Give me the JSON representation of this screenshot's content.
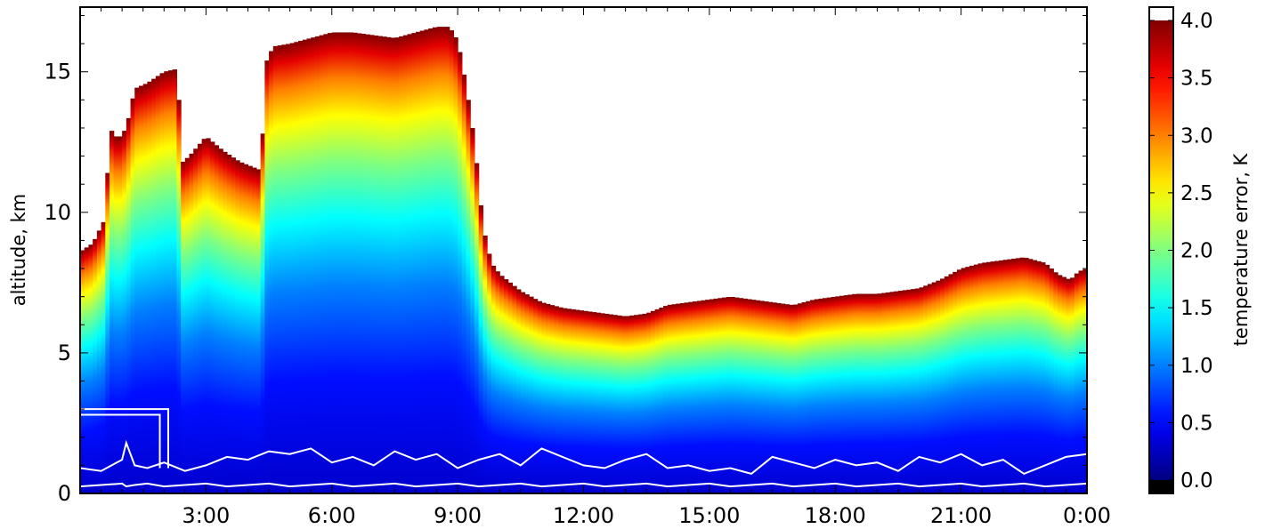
{
  "chart_data": {
    "type": "heatmap",
    "title": "",
    "xlabel": "",
    "ylabel": "altitude, km",
    "colorbar_label": "temperature error, K",
    "colormap": "jet",
    "x_ticks": [
      "3:00",
      "6:00",
      "9:00",
      "12:00",
      "15:00",
      "18:00",
      "21:00",
      "0:00"
    ],
    "y_ticks": [
      "0",
      "5",
      "10",
      "15"
    ],
    "colorbar_ticks": [
      "0.0",
      "0.5",
      "1.0",
      "1.5",
      "2.0",
      "2.5",
      "3.0",
      "3.5",
      "4.0"
    ],
    "xlim_hours": [
      0,
      24
    ],
    "ylim_km": [
      0,
      17.3
    ],
    "clim": [
      0,
      4.0
    ],
    "colorbar_extends": "both",
    "colorbar_over_color": "#ffffff",
    "colorbar_under_color": "#000000",
    "missing_color": "#ffffff",
    "contour_color": "#ffffff",
    "error_profile": {
      "description_units": "error K vs fraction of valid top altitude",
      "fraction": [
        0.0,
        0.25,
        0.45,
        0.6,
        0.72,
        0.82,
        0.9,
        0.96,
        1.0
      ],
      "error": [
        0.3,
        0.55,
        1.0,
        1.5,
        2.0,
        2.5,
        3.0,
        3.6,
        4.0
      ]
    },
    "valid_top_altitude_km": {
      "hours": [
        0.0,
        0.3,
        0.6,
        0.7,
        0.9,
        1.1,
        1.3,
        1.6,
        2.0,
        2.3,
        2.45,
        2.6,
        3.0,
        3.4,
        3.8,
        4.3,
        4.45,
        4.6,
        5.0,
        5.5,
        6.0,
        6.5,
        7.0,
        7.5,
        8.0,
        8.5,
        8.8,
        9.0,
        9.2,
        9.4,
        9.6,
        9.8,
        10.0,
        10.5,
        11.0,
        11.5,
        12.0,
        12.5,
        13.0,
        13.5,
        14.0,
        14.5,
        15.0,
        15.5,
        16.0,
        16.5,
        17.0,
        17.5,
        18.0,
        18.5,
        19.0,
        19.5,
        20.0,
        20.5,
        21.0,
        21.5,
        22.0,
        22.5,
        23.0,
        23.3,
        23.6,
        23.8,
        24.0
      ],
      "top_km": [
        8.6,
        8.9,
        9.8,
        13.0,
        12.6,
        13.0,
        14.4,
        14.6,
        15.0,
        15.1,
        11.8,
        12.0,
        12.7,
        12.2,
        11.8,
        11.5,
        15.4,
        15.9,
        16.0,
        16.2,
        16.4,
        16.4,
        16.3,
        16.2,
        16.4,
        16.6,
        16.6,
        16.1,
        14.5,
        12.5,
        9.5,
        8.2,
        7.8,
        7.2,
        6.8,
        6.6,
        6.5,
        6.4,
        6.3,
        6.4,
        6.7,
        6.8,
        6.9,
        7.0,
        6.9,
        6.8,
        6.7,
        6.9,
        7.0,
        7.1,
        7.1,
        7.2,
        7.3,
        7.6,
        8.0,
        8.2,
        8.3,
        8.4,
        8.2,
        7.8,
        7.6,
        7.9,
        8.0
      ]
    },
    "contour_boundary_km": {
      "hours": [
        0.0,
        0.5,
        1.0,
        1.1,
        1.3,
        1.6,
        2.0,
        2.5,
        3.0,
        3.5,
        4.0,
        4.5,
        5.0,
        5.5,
        6.0,
        6.5,
        7.0,
        7.5,
        8.0,
        8.5,
        9.0,
        9.5,
        10.0,
        10.5,
        11.0,
        11.5,
        12.0,
        12.5,
        13.0,
        13.5,
        14.0,
        14.5,
        15.0,
        15.5,
        16.0,
        16.5,
        17.0,
        17.5,
        18.0,
        18.5,
        19.0,
        19.5,
        20.0,
        20.5,
        21.0,
        21.5,
        22.0,
        22.5,
        23.0,
        23.5,
        24.0
      ],
      "top_km": [
        0.9,
        0.8,
        1.2,
        1.8,
        1.0,
        0.9,
        1.1,
        0.8,
        1.0,
        1.3,
        1.2,
        1.5,
        1.4,
        1.6,
        1.1,
        1.3,
        1.0,
        1.5,
        1.2,
        1.4,
        0.9,
        1.2,
        1.4,
        1.0,
        1.6,
        1.3,
        1.0,
        0.9,
        1.2,
        1.4,
        0.9,
        1.0,
        0.8,
        0.9,
        0.7,
        1.3,
        1.1,
        0.9,
        1.2,
        1.0,
        1.1,
        0.8,
        1.3,
        1.1,
        1.4,
        1.0,
        1.2,
        0.7,
        1.0,
        1.3,
        1.4
      ]
    },
    "contour_box_km": {
      "x_hours": [
        0.0,
        2.1
      ],
      "y_km": [
        2.8,
        3.0
      ],
      "bottom_km": 0.9
    }
  }
}
